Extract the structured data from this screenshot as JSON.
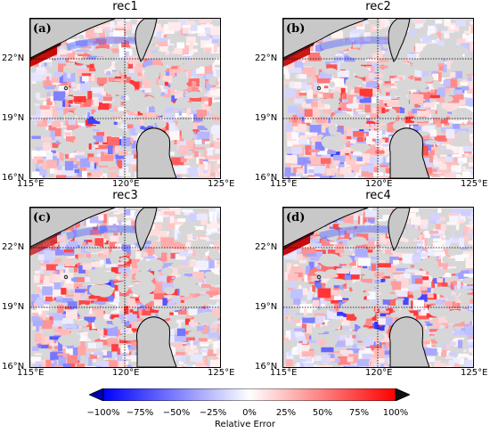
{
  "panels": [
    {
      "title": "rec1",
      "label": "(a)"
    },
    {
      "title": "rec2",
      "label": "(b)"
    },
    {
      "title": "rec3",
      "label": "(c)"
    },
    {
      "title": "rec4",
      "label": "(d)"
    }
  ],
  "axes": {
    "lat_ticks": [
      "22°N",
      "19°N",
      "16°N"
    ],
    "lon_ticks": [
      "115°E",
      "120°E",
      "125°E"
    ]
  },
  "colorbar": {
    "ticks": [
      "−100%",
      "−75%",
      "−50%",
      "−25%",
      "0%",
      "25%",
      "50%",
      "75%",
      "100%"
    ],
    "label": "Relative Error",
    "colors": {
      "negative": "#0000ff",
      "zero": "#ffffff",
      "positive": "#ff0000",
      "land": "#c8c8c8",
      "nodata": "#d7d7d7"
    }
  }
}
